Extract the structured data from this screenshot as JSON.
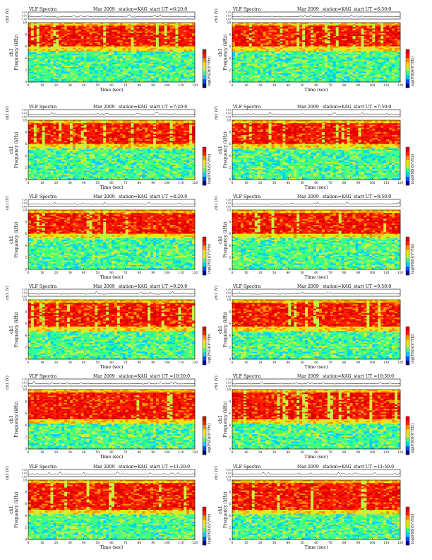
{
  "page": {
    "background": "#ffffff"
  },
  "colors": {
    "colormap": [
      "#000090",
      "#0050ff",
      "#00d0ff",
      "#40ff80",
      "#c8f040",
      "#ffe000",
      "#ff9000",
      "#ff2000",
      "#e00000"
    ],
    "upper_band": "#1ed7c9",
    "waveform": "#000000"
  },
  "chart_data": [
    {
      "type": "heatmap",
      "panel": 1,
      "title": "VLF Spectra",
      "date": "Mar 2009",
      "station": "station=KAG",
      "start": "start UT =6:20:0",
      "xlabel": "Time (sec)",
      "ylabel": "Frequency (kHz)",
      "channel": "ch1",
      "waveform_label": "ch1 (V)",
      "waveform_ticks": [
        "0.00",
        "0.10",
        "0.20"
      ],
      "colorbar_label": "log(PSD)(V²/Hz)",
      "x_ticks": [
        "0",
        "10",
        "20",
        "30",
        "40",
        "50",
        "60",
        "70",
        "80",
        "90",
        "100",
        "110",
        "120"
      ],
      "xlim": [
        0,
        120
      ],
      "y_ticks": [
        "0",
        "2",
        "4",
        "6",
        "8",
        "10"
      ],
      "ylim": [
        0,
        10
      ],
      "band_top_khz": 10,
      "emission_band_khz": [
        6,
        9.5
      ]
    },
    {
      "type": "heatmap",
      "panel": 2,
      "title": "VLF Spectra",
      "date": "Mar 2009",
      "station": "station=KAG",
      "start": "start UT =6:50:0",
      "xlabel": "Time (sec)",
      "ylabel": "Frequency (kHz)",
      "channel": "ch1",
      "waveform_label": "ch1 (V)",
      "waveform_ticks": [
        "0.00",
        "0.10",
        "0.20"
      ],
      "colorbar_label": "log(PSD)(V²/Hz)",
      "x_ticks": [
        "0",
        "10",
        "20",
        "30",
        "40",
        "50",
        "60",
        "70",
        "80",
        "90",
        "100",
        "110",
        "120"
      ],
      "xlim": [
        0,
        120
      ],
      "y_ticks": [
        "0",
        "2",
        "4",
        "6",
        "8",
        "10"
      ],
      "ylim": [
        0,
        10
      ],
      "band_top_khz": 10,
      "emission_band_khz": [
        6,
        9.5
      ]
    },
    {
      "type": "heatmap",
      "panel": 3,
      "title": "VLF Spectra",
      "date": "Mar 2009",
      "station": "station=KAG",
      "start": "start UT =7:20:0",
      "xlabel": "Time (sec)",
      "ylabel": "Frequency (kHz)",
      "channel": "ch1",
      "waveform_label": "ch1 (V)",
      "waveform_ticks": [
        "0.00",
        "0.10",
        "0.20"
      ],
      "colorbar_label": "log(PSD)(V²/Hz)",
      "x_ticks": [
        "0",
        "10",
        "20",
        "30",
        "40",
        "50",
        "60",
        "70",
        "80",
        "90",
        "100",
        "110",
        "120"
      ],
      "xlim": [
        0,
        120
      ],
      "y_ticks": [
        "0",
        "2",
        "4",
        "6",
        "8",
        "10"
      ],
      "ylim": [
        0,
        10
      ],
      "band_top_khz": 10,
      "emission_band_khz": [
        6,
        9.5
      ]
    },
    {
      "type": "heatmap",
      "panel": 4,
      "title": "VLF Spectra",
      "date": "Mar 2009",
      "station": "station=KAG",
      "start": "start UT =7:50:0",
      "xlabel": "Time (sec)",
      "ylabel": "Frequency (kHz)",
      "channel": "ch1",
      "waveform_label": "ch1 (V)",
      "waveform_ticks": [
        "0.00",
        "0.10",
        "0.20"
      ],
      "colorbar_label": "log(PSD)(V²/Hz)",
      "x_ticks": [
        "0",
        "10",
        "20",
        "30",
        "40",
        "50",
        "60",
        "70",
        "80",
        "90",
        "100",
        "110",
        "120"
      ],
      "xlim": [
        0,
        120
      ],
      "y_ticks": [
        "0",
        "2",
        "4",
        "6",
        "8",
        "10"
      ],
      "ylim": [
        0,
        10
      ],
      "band_top_khz": 10,
      "emission_band_khz": [
        6,
        9.5
      ]
    },
    {
      "type": "heatmap",
      "panel": 5,
      "title": "VLF Spectra",
      "date": "Mar 2009",
      "station": "station=KAG",
      "start": "start UT =8:20:0",
      "xlabel": "Time (sec)",
      "ylabel": "Frequency (kHz)",
      "channel": "ch1",
      "waveform_label": "ch1 (V)",
      "waveform_ticks": [
        "0.00",
        "0.10",
        "0.20"
      ],
      "colorbar_label": "log(PSD)(V²/Hz)",
      "x_ticks": [
        "0",
        "10",
        "20",
        "30",
        "40",
        "50",
        "60",
        "70",
        "80",
        "90",
        "100",
        "110",
        "120"
      ],
      "xlim": [
        0,
        120
      ],
      "y_ticks": [
        "0",
        "2",
        "4",
        "6",
        "8",
        "10"
      ],
      "ylim": [
        0,
        10
      ],
      "band_top_khz": 10,
      "emission_band_khz": [
        6,
        9.5
      ]
    },
    {
      "type": "heatmap",
      "panel": 6,
      "title": "VLF Spectra",
      "date": "Mar 2009",
      "station": "station=KAG",
      "start": "start UT =8:50:0",
      "xlabel": "Time (sec)",
      "ylabel": "Frequency (kHz)",
      "channel": "ch1",
      "waveform_label": "ch1 (V)",
      "waveform_ticks": [
        "0.00",
        "0.10",
        "0.20"
      ],
      "colorbar_label": "log(PSD)(V²/Hz)",
      "x_ticks": [
        "0",
        "10",
        "20",
        "30",
        "40",
        "50",
        "60",
        "70",
        "80",
        "90",
        "100",
        "110",
        "120"
      ],
      "xlim": [
        0,
        120
      ],
      "y_ticks": [
        "0",
        "2",
        "4",
        "6",
        "8",
        "10"
      ],
      "ylim": [
        0,
        10
      ],
      "band_top_khz": 10,
      "emission_band_khz": [
        6,
        9.5
      ]
    },
    {
      "type": "heatmap",
      "panel": 7,
      "title": "VLF Spectra",
      "date": "Mar 2009",
      "station": "station=KAG",
      "start": "start UT =9:20:0",
      "xlabel": "Time (sec)",
      "ylabel": "Frequency (kHz)",
      "channel": "ch1",
      "waveform_label": "ch1 (V)",
      "waveform_ticks": [
        "0.00",
        "0.10",
        "0.20"
      ],
      "colorbar_label": "log(PSD)(V²/Hz)",
      "x_ticks": [
        "0",
        "10",
        "20",
        "30",
        "40",
        "50",
        "60",
        "70",
        "80",
        "90",
        "100",
        "110",
        "120"
      ],
      "xlim": [
        0,
        120
      ],
      "y_ticks": [
        "0",
        "2",
        "4",
        "6",
        "8",
        "10"
      ],
      "ylim": [
        0,
        10
      ],
      "band_top_khz": 10,
      "emission_band_khz": [
        5.5,
        9.5
      ]
    },
    {
      "type": "heatmap",
      "panel": 8,
      "title": "VLF Spectra",
      "date": "Mar 2009",
      "station": "station=KAG",
      "start": "start UT =9:50:0",
      "xlabel": "Time (sec)",
      "ylabel": "Frequency (kHz)",
      "channel": "ch1",
      "waveform_label": "ch1 (V)",
      "waveform_ticks": [
        "0.00",
        "0.10",
        "0.20"
      ],
      "colorbar_label": "log(PSD)(V²/Hz)",
      "x_ticks": [
        "0",
        "10",
        "20",
        "30",
        "40",
        "50",
        "60",
        "70",
        "80",
        "90",
        "100",
        "110",
        "120"
      ],
      "xlim": [
        0,
        120
      ],
      "y_ticks": [
        "0",
        "2",
        "4",
        "6",
        "8",
        "10"
      ],
      "ylim": [
        0,
        10
      ],
      "band_top_khz": 10,
      "emission_band_khz": [
        5.5,
        9.5
      ]
    },
    {
      "type": "heatmap",
      "panel": 9,
      "title": "VLF Spectra",
      "date": "Mar 2009",
      "station": "station=KAG",
      "start": "start UT =10:20:0",
      "xlabel": "Time (sec)",
      "ylabel": "Frequency (kHz)",
      "channel": "ch1",
      "waveform_label": "ch1 (V)",
      "waveform_ticks": [
        "0.00",
        "0.10",
        "0.20"
      ],
      "colorbar_label": "log(PSD)(V²/Hz)",
      "x_ticks": [
        "0",
        "10",
        "20",
        "30",
        "40",
        "50",
        "60",
        "70",
        "80",
        "90",
        "100",
        "110",
        "120"
      ],
      "xlim": [
        0,
        120
      ],
      "y_ticks": [
        "0",
        "2",
        "4",
        "6",
        "8",
        "10"
      ],
      "ylim": [
        0,
        10
      ],
      "band_top_khz": 10,
      "emission_band_khz": [
        5,
        9.5
      ]
    },
    {
      "type": "heatmap",
      "panel": 10,
      "title": "VLF Spectra",
      "date": "Mar 2009",
      "station": "station=KAG",
      "start": "start UT =10:50:0",
      "xlabel": "Time (sec)",
      "ylabel": "Frequency (kHz)",
      "channel": "ch1",
      "waveform_label": "ch1 (V)",
      "waveform_ticks": [
        "0.00",
        "0.10",
        "0.20"
      ],
      "colorbar_label": "log(PSD)(V²/Hz)",
      "x_ticks": [
        "0",
        "10",
        "20",
        "30",
        "40",
        "50",
        "60",
        "70",
        "80",
        "90",
        "100",
        "110",
        "120"
      ],
      "xlim": [
        0,
        120
      ],
      "y_ticks": [
        "0",
        "2",
        "4",
        "6",
        "8",
        "10"
      ],
      "ylim": [
        0,
        10
      ],
      "band_top_khz": 10,
      "emission_band_khz": [
        5,
        9.5
      ]
    },
    {
      "type": "heatmap",
      "panel": 11,
      "title": "VLF Spectra",
      "date": "Mar 2009",
      "station": "station=KAG",
      "start": "start UT =11:20:0",
      "xlabel": "Time (sec)",
      "ylabel": "Frequency (kHz)",
      "channel": "ch1",
      "waveform_label": "ch1 (V)",
      "waveform_ticks": [
        "0.00",
        "0.10",
        "0.20"
      ],
      "colorbar_label": "log(PSD)(V²/Hz)",
      "x_ticks": [
        "0",
        "10",
        "20",
        "30",
        "40",
        "50",
        "60",
        "70",
        "80",
        "90",
        "100",
        "110",
        "120"
      ],
      "xlim": [
        0,
        120
      ],
      "y_ticks": [
        "0",
        "2",
        "4",
        "6",
        "8",
        "10"
      ],
      "ylim": [
        0,
        10
      ],
      "band_top_khz": 10,
      "emission_band_khz": [
        5,
        9.5
      ]
    },
    {
      "type": "heatmap",
      "panel": 12,
      "title": "VLF Spectra",
      "date": "Mar 2009",
      "station": "station=KAG",
      "start": "start UT =11:50:0",
      "xlabel": "Time (sec)",
      "ylabel": "Frequency (kHz)",
      "channel": "ch1",
      "waveform_label": "ch1 (V)",
      "waveform_ticks": [
        "0.00",
        "0.10",
        "0.20"
      ],
      "colorbar_label": "log(PSD)(V²/Hz)",
      "x_ticks": [
        "0",
        "10",
        "20",
        "30",
        "40",
        "50",
        "60",
        "70",
        "80",
        "90",
        "100",
        "110",
        "120"
      ],
      "xlim": [
        0,
        120
      ],
      "y_ticks": [
        "0",
        "2",
        "4",
        "6",
        "8",
        "10"
      ],
      "ylim": [
        0,
        10
      ],
      "band_top_khz": 10,
      "emission_band_khz": [
        5,
        9.5
      ]
    }
  ]
}
